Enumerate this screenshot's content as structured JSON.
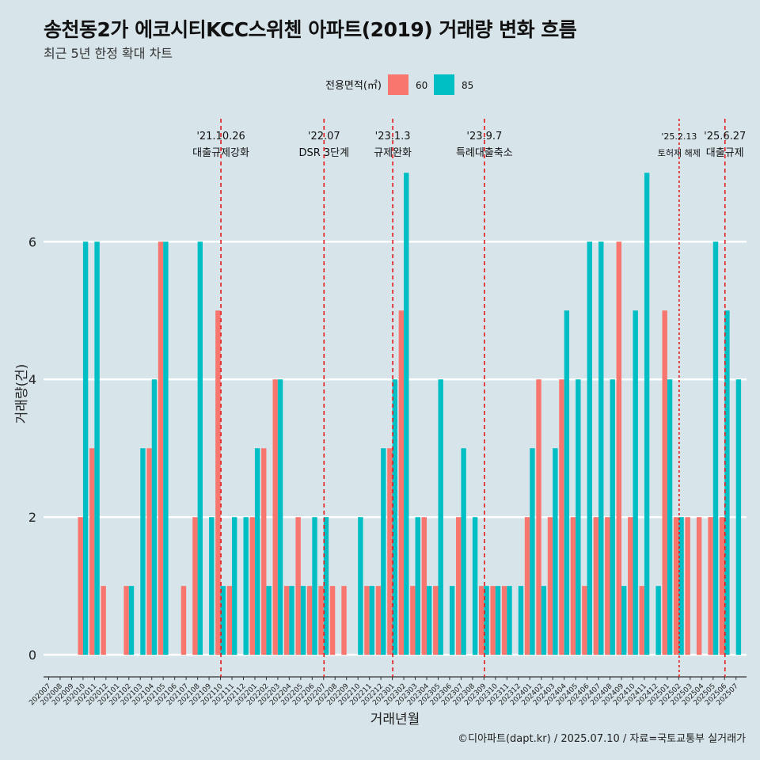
{
  "title": "송천동2가 에코시티KCC스위첸 아파트(2019) 거래량 변화 흐름",
  "subtitle": "최근 5년 한정 확대 차트",
  "caption": "©디아파트(dapt.kr) / 2025.07.10 / 자료=국토교통부 실거래가",
  "colors": {
    "s60": "#f8766d",
    "s85": "#00bfc4",
    "event": "#e41a1c",
    "background": "#d7e4ea",
    "grid": "#ffffff"
  },
  "chart_data": {
    "type": "bar",
    "xlabel": "거래년월",
    "ylabel": "거래량(건)",
    "ylim": [
      -0.32,
      7.9
    ],
    "yticks": [
      0,
      2,
      4,
      6
    ],
    "legend": {
      "title": "전용면적(㎡)",
      "position": "top"
    },
    "categories": [
      "202007",
      "202008",
      "202009",
      "202010",
      "202011",
      "202012",
      "202101",
      "202102",
      "202103",
      "202104",
      "202105",
      "202106",
      "202107",
      "202108",
      "202109",
      "202110",
      "202111",
      "202112",
      "202201",
      "202202",
      "202203",
      "202204",
      "202205",
      "202206",
      "202207",
      "202208",
      "202209",
      "202210",
      "202211",
      "202212",
      "202301",
      "202302",
      "202303",
      "202304",
      "202305",
      "202306",
      "202307",
      "202308",
      "202309",
      "202310",
      "202311",
      "202312",
      "202401",
      "202402",
      "202403",
      "202404",
      "202405",
      "202406",
      "202407",
      "202408",
      "202409",
      "202410",
      "202411",
      "202412",
      "202501",
      "202502",
      "202503",
      "202504",
      "202505",
      "202506",
      "202507"
    ],
    "series": [
      {
        "name": "60",
        "values": [
          0,
          0,
          0,
          2,
          3,
          1,
          0,
          1,
          0,
          3,
          6,
          0,
          1,
          2,
          0,
          5,
          1,
          0,
          2,
          3,
          4,
          1,
          2,
          1,
          1,
          1,
          1,
          0,
          1,
          1,
          3,
          5,
          1,
          2,
          1,
          0,
          2,
          0,
          1,
          1,
          1,
          0,
          2,
          4,
          2,
          4,
          2,
          1,
          2,
          2,
          6,
          2,
          1,
          0,
          5,
          2,
          2,
          2,
          2,
          2,
          0
        ]
      },
      {
        "name": "85",
        "values": [
          0,
          0,
          0,
          6,
          6,
          0,
          0,
          1,
          3,
          4,
          6,
          0,
          0,
          6,
          2,
          1,
          2,
          2,
          3,
          1,
          4,
          1,
          1,
          2,
          2,
          0,
          0,
          2,
          1,
          3,
          4,
          7,
          2,
          1,
          4,
          1,
          3,
          2,
          1,
          1,
          1,
          1,
          3,
          1,
          3,
          5,
          4,
          6,
          6,
          4,
          1,
          5,
          7,
          1,
          4,
          2,
          0,
          0,
          6,
          5,
          4
        ]
      }
    ],
    "events": [
      {
        "date": "'21.10.26",
        "label": "대출규제강화",
        "category": "202110",
        "style": "dashed"
      },
      {
        "date": "'22.07",
        "label": "DSR 3단계",
        "category": "202207",
        "style": "dashed"
      },
      {
        "date": "'23.1.3",
        "label": "규제완화",
        "category": "202301",
        "style": "dashed"
      },
      {
        "date": "'23.9.7",
        "label": "특례대출축소",
        "category": "202309",
        "style": "dashed"
      },
      {
        "date": "'25.2.13",
        "label": "토허제 해제",
        "category": "202502",
        "style": "dotted"
      },
      {
        "date": "'25.6.27",
        "label": "대출규제",
        "category": "202506",
        "style": "dashed"
      }
    ]
  }
}
